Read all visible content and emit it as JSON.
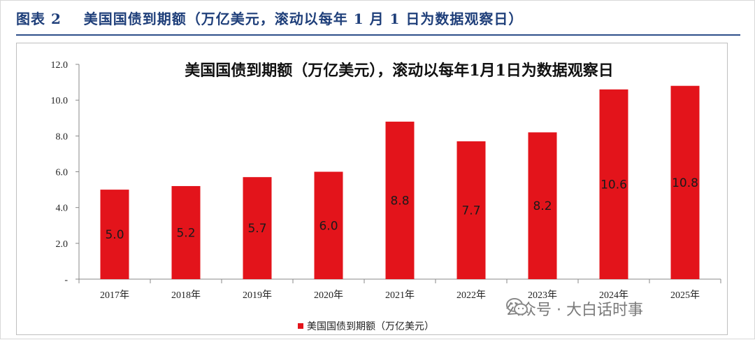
{
  "figure": {
    "label": "图表 2",
    "title": "美国国债到期额（万亿美元，滚动以每年 1 月 1 日为数据观察日）"
  },
  "watermark": {
    "text": "公众号 · 大白话时事",
    "icon": "wechat-icon"
  },
  "colors": {
    "bar": "#e3141b",
    "title": "#1f3f7a",
    "rule": "#2e4f8a"
  },
  "chart_data": {
    "type": "bar",
    "title": "美国国债到期额（万亿美元），滚动以每年1月1日为数据观察日",
    "categories": [
      "2017年",
      "2018年",
      "2019年",
      "2020年",
      "2021年",
      "2022年",
      "2023年",
      "2024年",
      "2025年"
    ],
    "series": [
      {
        "name": "美国国债到期额（万亿美元）",
        "values": [
          5.0,
          5.2,
          5.7,
          6.0,
          8.8,
          7.7,
          8.2,
          10.6,
          10.8
        ],
        "labels": [
          "5.0",
          "5.2",
          "5.7",
          "6.0",
          "8.8",
          "7.7",
          "8.2",
          "10.6",
          "10.8"
        ]
      }
    ],
    "ylim": [
      0,
      12
    ],
    "yticks": [
      0,
      2,
      4,
      6,
      8,
      10,
      12
    ],
    "ytick_labels": [
      "-",
      "2.0",
      "4.0",
      "6.0",
      "8.0",
      "10.0",
      "12.0"
    ],
    "grid": false,
    "legend_position": "bottom"
  }
}
